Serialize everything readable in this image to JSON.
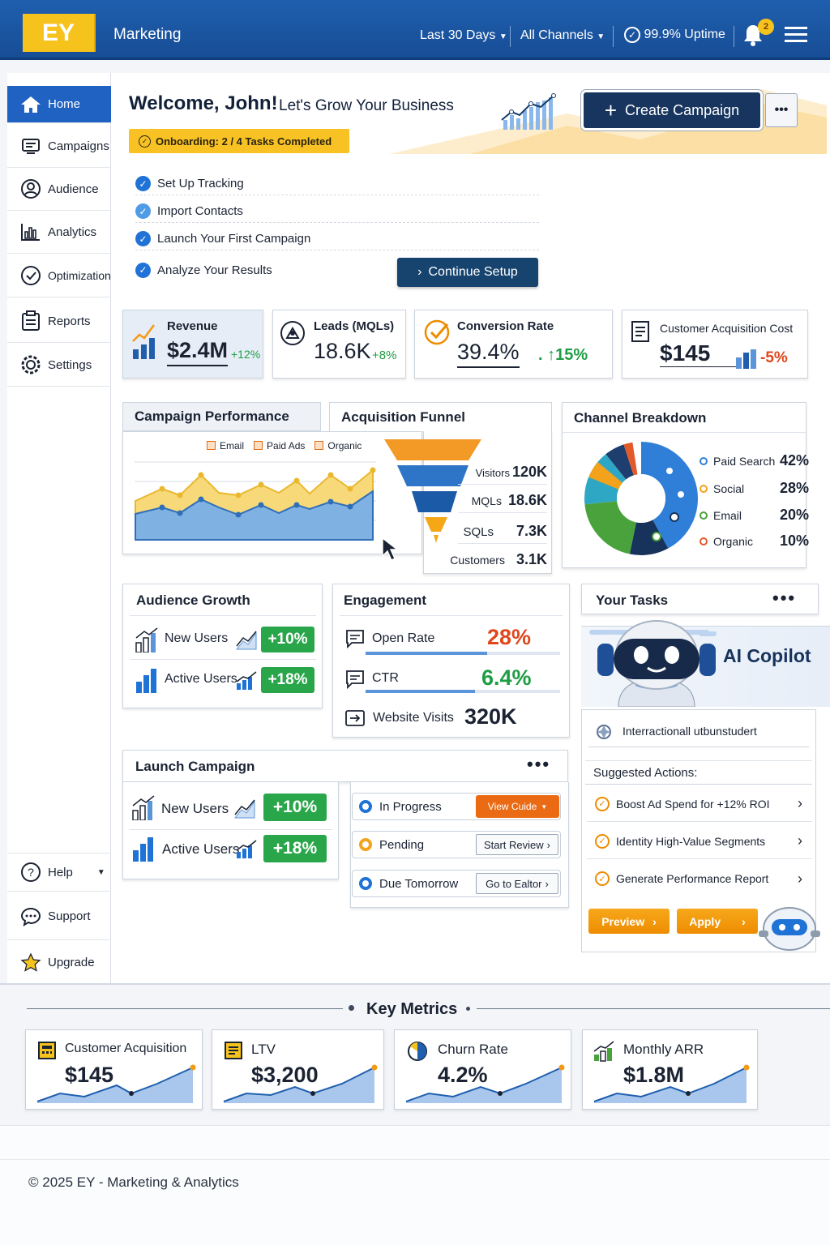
{
  "header": {
    "logo": "EY",
    "app_name": "Marketing",
    "range": "Last 30 Days",
    "channels": "All Channels",
    "uptime": "99.9% Uptime",
    "notif_count": "2",
    "brand_color": "#1f5fae",
    "accent": "#f6c21c"
  },
  "sidebar": {
    "items": [
      {
        "label": "Home",
        "icon": "home-icon",
        "active": true
      },
      {
        "label": "Campaigns",
        "icon": "campaign-icon"
      },
      {
        "label": "Audience",
        "icon": "user-icon"
      },
      {
        "label": "Analytics",
        "icon": "bar-chart-icon"
      },
      {
        "label": "Optimization",
        "icon": "check-circle-icon"
      },
      {
        "label": "Reports",
        "icon": "report-icon"
      },
      {
        "label": "Settings",
        "icon": "gear-icon"
      }
    ],
    "bottom": [
      {
        "label": "Help",
        "icon": "help-icon"
      },
      {
        "label": "Support",
        "icon": "chat-icon"
      },
      {
        "label": "Upgrade",
        "icon": "star-icon"
      }
    ]
  },
  "welcome": {
    "title": "Welcome, John!",
    "subtitle": "Let's Grow Your Business",
    "onboarding": "Onboarding: 2 / 4 Tasks Completed",
    "create": "Create Campaign",
    "continue": "Continue Setup",
    "tasks": [
      "Set Up Tracking",
      "Import Contacts",
      "Launch Your First Campaign",
      "Analyze Your Results"
    ]
  },
  "kpis": [
    {
      "label": "Revenue",
      "value": "$2.4M",
      "delta": "+12%"
    },
    {
      "label": "Leads (MQLs)",
      "value": "18.6K",
      "delta": "+8%"
    },
    {
      "label": "Conversion Rate",
      "value": "39.4%",
      "delta": "↑15%"
    },
    {
      "label": "Customer Acquisition Cost",
      "value": "$145",
      "delta": "-5%"
    }
  ],
  "campaign_perf": {
    "title": "Campaign Performance",
    "legend": [
      "Email",
      "Paid Ads",
      "Organic"
    ]
  },
  "funnel": {
    "title": "Acquisition Funnel",
    "stages": [
      {
        "label": "Visitors",
        "value": "120K"
      },
      {
        "label": "MQLs",
        "value": "18.6K"
      },
      {
        "label": "SQLs",
        "value": "7.3K"
      },
      {
        "label": "Customers",
        "value": "3.1K"
      }
    ]
  },
  "channels": {
    "title": "Channel Breakdown",
    "items": [
      {
        "label": "Paid Search",
        "value": "42%",
        "color": "#2f7fd8"
      },
      {
        "label": "Social",
        "value": "28%",
        "color": "#f3a21c"
      },
      {
        "label": "Email",
        "value": "20%",
        "color": "#4aa23c"
      },
      {
        "label": "Organic",
        "value": "10%",
        "color": "#e25a2a"
      }
    ]
  },
  "audience": {
    "title": "Audience Growth",
    "rows": [
      {
        "label": "New Users",
        "value": "+10%"
      },
      {
        "label": "Active Users",
        "value": "+18%"
      }
    ]
  },
  "engagement": {
    "title": "Engagement",
    "rows": [
      {
        "label": "Open Rate",
        "value": "28%"
      },
      {
        "label": "CTR",
        "value": "6.4%"
      },
      {
        "label": "Website Visits",
        "value": "320K"
      }
    ]
  },
  "tasks_panel": {
    "title": "Your Tasks",
    "copilot": "AI Copilot",
    "copilot_text": "Interractionall utbunstudert",
    "suggested_title": "Suggested Actions:",
    "suggested": [
      "Boost Ad Spend for +12% ROI",
      "Identity High-Value Segments",
      "Generate Performance Report"
    ],
    "preview": "Preview",
    "apply": "Apply"
  },
  "launch": {
    "title": "Launch Campaign",
    "rows": [
      {
        "label": "New Users",
        "value": "+10%"
      },
      {
        "label": "Active Users",
        "value": "+18%"
      }
    ],
    "status": [
      {
        "label": "In Progress",
        "action": "View Cuide"
      },
      {
        "label": "Pending",
        "action": "Start Review"
      },
      {
        "label": "Due Tomorrow",
        "action": "Go to Ealtor"
      }
    ]
  },
  "key_metrics": {
    "title": "Key Metrics",
    "items": [
      {
        "label": "Customer Acquisition",
        "value": "$145",
        "icon": "calculator-icon"
      },
      {
        "label": "LTV",
        "value": "$3,200",
        "icon": "ledger-icon"
      },
      {
        "label": "Churn Rate",
        "value": "4.2%",
        "icon": "pie-icon"
      },
      {
        "label": "Monthly ARR",
        "value": "$1.8M",
        "icon": "growth-icon"
      }
    ]
  },
  "footer": "© 2025 EY - Marketing & Analytics"
}
